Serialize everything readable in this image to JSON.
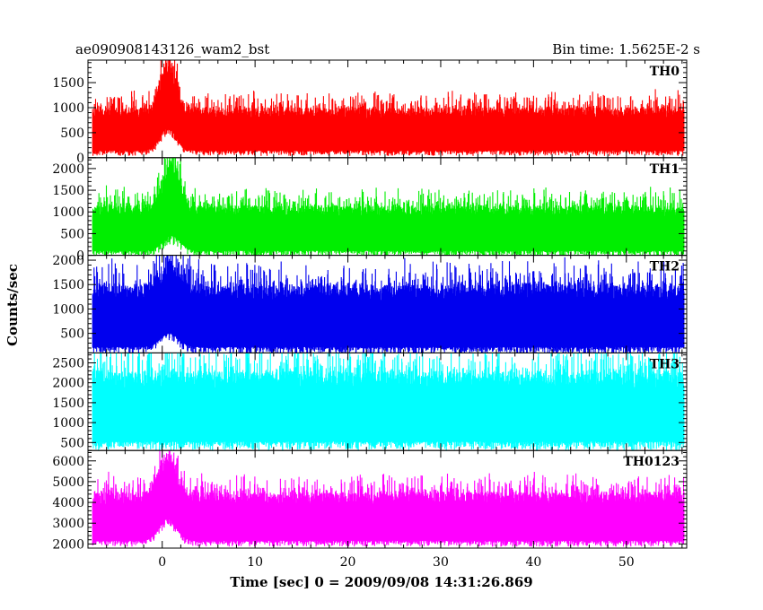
{
  "chart_data": {
    "type": "line",
    "title_left": "ae090908143126_wam2_bst",
    "title_right": "Bin time: 1.5625E-2 s",
    "xlabel": "Time [sec] 0 = 2009/09/08 14:31:26.869",
    "ylabel": "Counts/sec",
    "xlim": [
      -8,
      56.5
    ],
    "x_ticks": [
      0,
      10,
      20,
      30,
      40,
      50
    ],
    "panels": [
      {
        "name": "TH0",
        "color": "#ff0000",
        "ylim": [
          0,
          1950
        ],
        "y_ticks": [
          0,
          500,
          1000,
          1500
        ],
        "t_start": -7.5,
        "t_end": 56.2,
        "bg_low": 140,
        "bg_high": 1000,
        "burst_peak_time": 0.6,
        "burst_peak_low": 600,
        "burst_peak_high": 1950,
        "burst_width": 1.2
      },
      {
        "name": "TH1",
        "color": "#00ee00",
        "ylim": [
          0,
          2250
        ],
        "y_ticks": [
          0,
          500,
          1000,
          1500,
          2000
        ],
        "t_start": -7.5,
        "t_end": 56.2,
        "bg_low": 100,
        "bg_high": 1150,
        "burst_peak_time": 1.0,
        "burst_peak_low": 450,
        "burst_peak_high": 2250,
        "burst_width": 1.3
      },
      {
        "name": "TH2",
        "color": "#0000ee",
        "ylim": [
          100,
          2100
        ],
        "y_ticks": [
          500,
          1000,
          1500,
          2000
        ],
        "t_start": -7.5,
        "t_end": 56.2,
        "bg_low": 220,
        "bg_high": 1500,
        "burst_peak_time": 0.8,
        "burst_peak_low": 500,
        "burst_peak_high": 2000,
        "burst_width": 1.4
      },
      {
        "name": "TH3",
        "color": "#00ffff",
        "ylim": [
          300,
          2750
        ],
        "y_ticks": [
          500,
          1000,
          1500,
          2000,
          2500
        ],
        "t_start": -7.5,
        "t_end": 56.2,
        "bg_low": 520,
        "bg_high": 2300,
        "burst_peak_time": 0.8,
        "burst_peak_low": 520,
        "burst_peak_high": 2400,
        "burst_width": 1.0
      },
      {
        "name": "TH0123",
        "color": "#ff00ff",
        "ylim": [
          1800,
          6500
        ],
        "y_ticks": [
          2000,
          3000,
          4000,
          5000,
          6000
        ],
        "t_start": -7.5,
        "t_end": 56.2,
        "bg_low": 2150,
        "bg_high": 4500,
        "burst_peak_time": 0.6,
        "burst_peak_low": 3200,
        "burst_peak_high": 6500,
        "burst_width": 1.3
      }
    ]
  }
}
